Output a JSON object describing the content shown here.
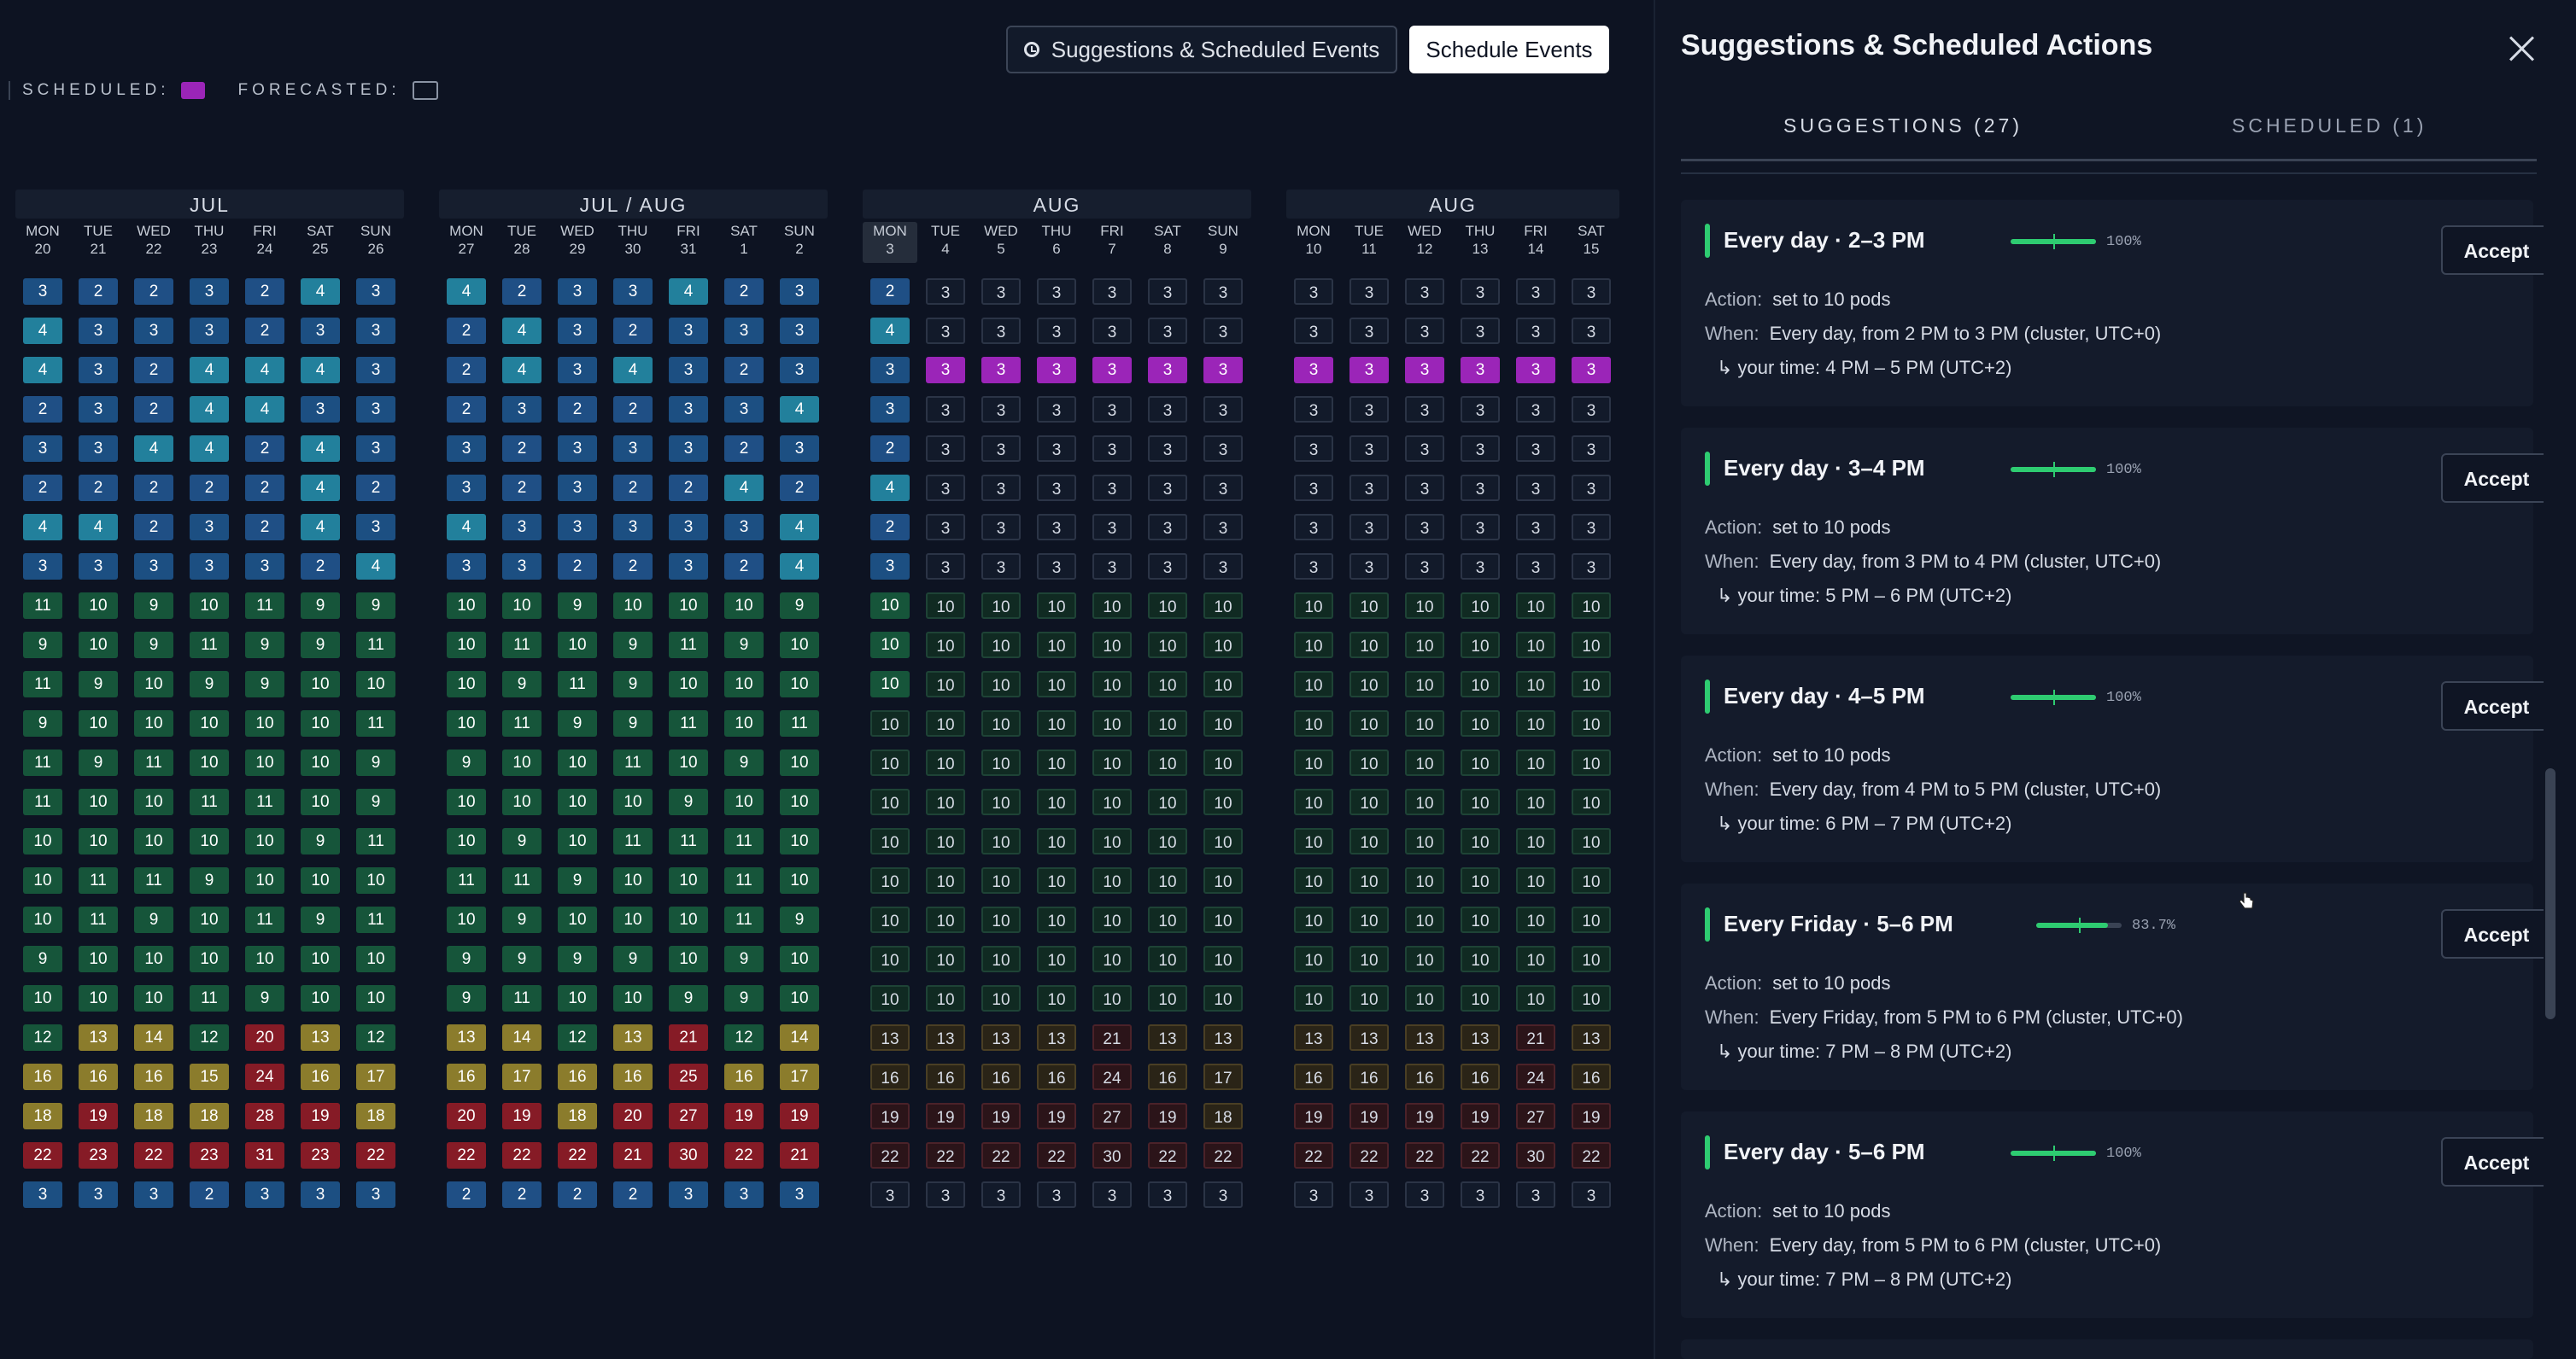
{
  "toolbar": {
    "suggestions_label": "Suggestions & Scheduled Events",
    "schedule_label": "Schedule Events"
  },
  "legend": {
    "scheduled": "SCHEDULED:",
    "forecasted": "FORECASTED:",
    "scheduled_color": "#9b25b8"
  },
  "heatmap": {
    "blocks": [
      {
        "title": "JUL",
        "days": [
          [
            "MON",
            "20"
          ],
          [
            "TUE",
            "21"
          ],
          [
            "WED",
            "22"
          ],
          [
            "THU",
            "23"
          ],
          [
            "FRI",
            "24"
          ],
          [
            "SAT",
            "25"
          ],
          [
            "SUN",
            "26"
          ]
        ],
        "today_index": -1,
        "rows": [
          [
            "3b3",
            "2b2",
            "2b2",
            "3b3",
            "2b2",
            "4b4",
            "3b3"
          ],
          [
            "4b4",
            "3b3",
            "3b3",
            "3b3",
            "2b2",
            "3b3",
            "3b3"
          ],
          [
            "4b4",
            "3b3",
            "2b2",
            "4b4",
            "4b4",
            "4b4",
            "3b3"
          ],
          [
            "2b2",
            "3b3",
            "2b2",
            "4b4",
            "4b4",
            "3b3",
            "3b3"
          ],
          [
            "3b3",
            "3b3",
            "4b4",
            "4b4",
            "2b2",
            "4b4",
            "3b3"
          ],
          [
            "2b2",
            "2b2",
            "2b2",
            "2b2",
            "2b2",
            "4b4",
            "2b2"
          ],
          [
            "4b4",
            "4b4",
            "2b2",
            "3b3",
            "2b2",
            "4b4",
            "3b3"
          ],
          [
            "3b3",
            "3b3",
            "3b3",
            "3b3",
            "3b3",
            "2b2",
            "4b4"
          ],
          [
            "11g",
            "10g",
            "9g",
            "10g",
            "11g",
            "9g",
            "9g"
          ],
          [
            "9g",
            "10g",
            "9g",
            "11g",
            "9g",
            "9g",
            "11g"
          ],
          [
            "11g",
            "9g",
            "10g",
            "9g",
            "9g",
            "10g",
            "10g"
          ],
          [
            "9g",
            "10g",
            "10g",
            "10g",
            "10g",
            "10g",
            "11g"
          ],
          [
            "11g",
            "9g",
            "11g",
            "10g",
            "10g",
            "10g",
            "9g"
          ],
          [
            "11g",
            "10g",
            "10g",
            "11g",
            "11g",
            "10g",
            "9g"
          ],
          [
            "10g",
            "10g",
            "10g",
            "10g",
            "10g",
            "9g",
            "11g"
          ],
          [
            "10g",
            "11g",
            "11g",
            "9g",
            "10g",
            "10g",
            "10g"
          ],
          [
            "10g",
            "11g",
            "9g",
            "10g",
            "11g",
            "9g",
            "11g"
          ],
          [
            "9g",
            "10g",
            "10g",
            "10g",
            "10g",
            "10g",
            "10g"
          ],
          [
            "10g",
            "10g",
            "10g",
            "11g",
            "9g",
            "10g",
            "10g"
          ],
          [
            "12g",
            "13y",
            "14y",
            "12g",
            "20r",
            "13y",
            "12g"
          ],
          [
            "16y",
            "16y",
            "16y",
            "15y",
            "24r",
            "16y",
            "17y"
          ],
          [
            "18y",
            "19r",
            "18y",
            "18y",
            "28r",
            "19r",
            "18y"
          ],
          [
            "22r",
            "23r",
            "22r",
            "23r",
            "31r",
            "23r",
            "22r"
          ],
          [
            "3b3",
            "3b3",
            "3b3",
            "2b2",
            "3b3",
            "3b3",
            "3b3"
          ]
        ]
      },
      {
        "title": "JUL / AUG",
        "days": [
          [
            "MON",
            "27"
          ],
          [
            "TUE",
            "28"
          ],
          [
            "WED",
            "29"
          ],
          [
            "THU",
            "30"
          ],
          [
            "FRI",
            "31"
          ],
          [
            "SAT",
            "1"
          ],
          [
            "SUN",
            "2"
          ]
        ],
        "today_index": -1,
        "rows": [
          [
            "4b4",
            "2b2",
            "3b3",
            "3b3",
            "4b4",
            "2b2",
            "3b3"
          ],
          [
            "2b2",
            "4b4",
            "3b3",
            "2b2",
            "3b3",
            "3b3",
            "3b3"
          ],
          [
            "2b2",
            "4b4",
            "3b3",
            "4b4",
            "3b3",
            "2b2",
            "3b3"
          ],
          [
            "2b2",
            "3b3",
            "2b2",
            "2b2",
            "3b3",
            "3b3",
            "4b4"
          ],
          [
            "3b3",
            "2b2",
            "3b3",
            "3b3",
            "3b3",
            "2b2",
            "3b3"
          ],
          [
            "3b3",
            "2b2",
            "3b3",
            "2b2",
            "2b2",
            "4b4",
            "2b2"
          ],
          [
            "4b4",
            "3b3",
            "3b3",
            "3b3",
            "3b3",
            "3b3",
            "4b4"
          ],
          [
            "3b3",
            "3b3",
            "2b2",
            "2b2",
            "3b3",
            "2b2",
            "4b4"
          ],
          [
            "10g",
            "10g",
            "9g",
            "10g",
            "10g",
            "10g",
            "9g"
          ],
          [
            "10g",
            "11g",
            "10g",
            "9g",
            "11g",
            "9g",
            "10g"
          ],
          [
            "10g",
            "9g",
            "11g",
            "9g",
            "10g",
            "10g",
            "10g"
          ],
          [
            "10g",
            "11g",
            "9g",
            "9g",
            "11g",
            "10g",
            "11g"
          ],
          [
            "9g",
            "10g",
            "10g",
            "11g",
            "10g",
            "9g",
            "10g"
          ],
          [
            "10g",
            "10g",
            "10g",
            "10g",
            "9g",
            "10g",
            "10g"
          ],
          [
            "10g",
            "9g",
            "10g",
            "11g",
            "11g",
            "11g",
            "10g"
          ],
          [
            "11g",
            "11g",
            "9g",
            "10g",
            "10g",
            "11g",
            "10g"
          ],
          [
            "10g",
            "9g",
            "10g",
            "10g",
            "10g",
            "11g",
            "9g"
          ],
          [
            "9g",
            "9g",
            "9g",
            "9g",
            "10g",
            "9g",
            "10g"
          ],
          [
            "9g",
            "11g",
            "10g",
            "10g",
            "9g",
            "9g",
            "10g"
          ],
          [
            "13y",
            "14y",
            "12g",
            "13y",
            "21r",
            "12g",
            "14y"
          ],
          [
            "16y",
            "17y",
            "16y",
            "16y",
            "25r",
            "16y",
            "17y"
          ],
          [
            "20r",
            "19r",
            "18y",
            "20r",
            "27r",
            "19r",
            "19r"
          ],
          [
            "22r",
            "22r",
            "22r",
            "21r",
            "30r",
            "22r",
            "21r"
          ],
          [
            "2b2",
            "2b2",
            "2b2",
            "2b2",
            "3b3",
            "3b3",
            "3b3"
          ]
        ]
      },
      {
        "title": "AUG",
        "days": [
          [
            "MON",
            "3"
          ],
          [
            "TUE",
            "4"
          ],
          [
            "WED",
            "5"
          ],
          [
            "THU",
            "6"
          ],
          [
            "FRI",
            "7"
          ],
          [
            "SAT",
            "8"
          ],
          [
            "SUN",
            "9"
          ]
        ],
        "today_index": 0,
        "rows": [
          [
            "2b2",
            "3f",
            "3f",
            "3f",
            "3f",
            "3f",
            "3f"
          ],
          [
            "4b4",
            "3f",
            "3f",
            "3f",
            "3f",
            "3f",
            "3f"
          ],
          [
            "3b3",
            "3p",
            "3p",
            "3p",
            "3p",
            "3p",
            "3p"
          ],
          [
            "3b3",
            "3f",
            "3f",
            "3f",
            "3f",
            "3f",
            "3f"
          ],
          [
            "2b2",
            "3f",
            "3f",
            "3f",
            "3f",
            "3f",
            "3f"
          ],
          [
            "4b4",
            "3f",
            "3f",
            "3f",
            "3f",
            "3f",
            "3f"
          ],
          [
            "2b2",
            "3f",
            "3f",
            "3f",
            "3f",
            "3f",
            "3f"
          ],
          [
            "3b3",
            "3f",
            "3f",
            "3f",
            "3f",
            "3f",
            "3f"
          ],
          [
            "10g",
            "10fg",
            "10fg",
            "10fg",
            "10fg",
            "10fg",
            "10fg"
          ],
          [
            "10g",
            "10fg",
            "10fg",
            "10fg",
            "10fg",
            "10fg",
            "10fg"
          ],
          [
            "10g",
            "10fg",
            "10fg",
            "10fg",
            "10fg",
            "10fg",
            "10fg"
          ],
          [
            "10fg",
            "10fg",
            "10fg",
            "10fg",
            "10fg",
            "10fg",
            "10fg"
          ],
          [
            "10fg",
            "10fg",
            "10fg",
            "10fg",
            "10fg",
            "10fg",
            "10fg"
          ],
          [
            "10fg",
            "10fg",
            "10fg",
            "10fg",
            "10fg",
            "10fg",
            "10fg"
          ],
          [
            "10fg",
            "10fg",
            "10fg",
            "10fg",
            "10fg",
            "10fg",
            "10fg"
          ],
          [
            "10fg",
            "10fg",
            "10fg",
            "10fg",
            "10fg",
            "10fg",
            "10fg"
          ],
          [
            "10fg",
            "10fg",
            "10fg",
            "10fg",
            "10fg",
            "10fg",
            "10fg"
          ],
          [
            "10fg",
            "10fg",
            "10fg",
            "10fg",
            "10fg",
            "10fg",
            "10fg"
          ],
          [
            "10fg",
            "10fg",
            "10fg",
            "10fg",
            "10fg",
            "10fg",
            "10fg"
          ],
          [
            "13fy",
            "13fy",
            "13fy",
            "13fy",
            "21fr",
            "13fy",
            "13fy"
          ],
          [
            "16fy",
            "16fy",
            "16fy",
            "16fy",
            "24fr",
            "16fy",
            "17fy"
          ],
          [
            "19fr",
            "19fr",
            "19fr",
            "19fr",
            "27fr",
            "19fr",
            "18fy"
          ],
          [
            "22fr",
            "22fr",
            "22fr",
            "22fr",
            "30fr",
            "22fr",
            "22fr"
          ],
          [
            "3f",
            "3f",
            "3f",
            "3f",
            "3f",
            "3f",
            "3f"
          ]
        ]
      },
      {
        "title": "AUG",
        "days": [
          [
            "MON",
            "10"
          ],
          [
            "TUE",
            "11"
          ],
          [
            "WED",
            "12"
          ],
          [
            "THU",
            "13"
          ],
          [
            "FRI",
            "14"
          ],
          [
            "SAT",
            "15"
          ]
        ],
        "today_index": -1,
        "rows": [
          [
            "3f",
            "3f",
            "3f",
            "3f",
            "3f",
            "3f"
          ],
          [
            "3f",
            "3f",
            "3f",
            "3f",
            "3f",
            "3f"
          ],
          [
            "3p",
            "3p",
            "3p",
            "3p",
            "3p",
            "3p"
          ],
          [
            "3f",
            "3f",
            "3f",
            "3f",
            "3f",
            "3f"
          ],
          [
            "3f",
            "3f",
            "3f",
            "3f",
            "3f",
            "3f"
          ],
          [
            "3f",
            "3f",
            "3f",
            "3f",
            "3f",
            "3f"
          ],
          [
            "3f",
            "3f",
            "3f",
            "3f",
            "3f",
            "3f"
          ],
          [
            "3f",
            "3f",
            "3f",
            "3f",
            "3f",
            "3f"
          ],
          [
            "10fg",
            "10fg",
            "10fg",
            "10fg",
            "10fg",
            "10fg"
          ],
          [
            "10fg",
            "10fg",
            "10fg",
            "10fg",
            "10fg",
            "10fg"
          ],
          [
            "10fg",
            "10fg",
            "10fg",
            "10fg",
            "10fg",
            "10fg"
          ],
          [
            "10fg",
            "10fg",
            "10fg",
            "10fg",
            "10fg",
            "10fg"
          ],
          [
            "10fg",
            "10fg",
            "10fg",
            "10fg",
            "10fg",
            "10fg"
          ],
          [
            "10fg",
            "10fg",
            "10fg",
            "10fg",
            "10fg",
            "10fg"
          ],
          [
            "10fg",
            "10fg",
            "10fg",
            "10fg",
            "10fg",
            "10fg"
          ],
          [
            "10fg",
            "10fg",
            "10fg",
            "10fg",
            "10fg",
            "10fg"
          ],
          [
            "10fg",
            "10fg",
            "10fg",
            "10fg",
            "10fg",
            "10fg"
          ],
          [
            "10fg",
            "10fg",
            "10fg",
            "10fg",
            "10fg",
            "10fg"
          ],
          [
            "10fg",
            "10fg",
            "10fg",
            "10fg",
            "10fg",
            "10fg"
          ],
          [
            "13fy",
            "13fy",
            "13fy",
            "13fy",
            "21fr",
            "13fy"
          ],
          [
            "16fy",
            "16fy",
            "16fy",
            "16fy",
            "24fr",
            "16fy"
          ],
          [
            "19fr",
            "19fr",
            "19fr",
            "19fr",
            "27fr",
            "19fr"
          ],
          [
            "22fr",
            "22fr",
            "22fr",
            "22fr",
            "30fr",
            "22fr"
          ],
          [
            "3f",
            "3f",
            "3f",
            "3f",
            "3f",
            "3f"
          ]
        ]
      }
    ]
  },
  "panel": {
    "title": "Suggestions & Scheduled Actions",
    "tabs": [
      {
        "label": "SUGGESTIONS (27)",
        "active": true
      },
      {
        "label": "SCHEDULED (1)",
        "active": false
      }
    ],
    "cards": [
      {
        "title": "Every day · 2–3 PM",
        "confidence": 1.0,
        "confidence_label": "100%",
        "action_label": "Action:",
        "action": "set to 10 pods",
        "when_label": "When:",
        "when": "Every day, from 2 PM to 3 PM (cluster, UTC+0)",
        "local": "↳ your time: 4 PM – 5 PM (UTC+2)",
        "accept_label": "Accept"
      },
      {
        "title": "Every day · 3–4 PM",
        "confidence": 1.0,
        "confidence_label": "100%",
        "action_label": "Action:",
        "action": "set to 10 pods",
        "when_label": "When:",
        "when": "Every day, from 3 PM to 4 PM (cluster, UTC+0)",
        "local": "↳ your time: 5 PM – 6 PM (UTC+2)",
        "accept_label": "Accept"
      },
      {
        "title": "Every day · 4–5 PM",
        "confidence": 1.0,
        "confidence_label": "100%",
        "action_label": "Action:",
        "action": "set to 10 pods",
        "when_label": "When:",
        "when": "Every day, from 4 PM to 5 PM (cluster, UTC+0)",
        "local": "↳ your time: 6 PM – 7 PM (UTC+2)",
        "accept_label": "Accept"
      },
      {
        "title": "Every Friday · 5–6 PM",
        "confidence": 0.837,
        "confidence_label": "83.7%",
        "action_label": "Action:",
        "action": "set to 10 pods",
        "when_label": "When:",
        "when": "Every Friday, from 5 PM to 6 PM (cluster, UTC+0)",
        "local": "↳ your time: 7 PM – 8 PM (UTC+2)",
        "accept_label": "Accept"
      },
      {
        "title": "Every day · 5–6 PM",
        "confidence": 1.0,
        "confidence_label": "100%",
        "action_label": "Action:",
        "action": "set to 10 pods",
        "when_label": "When:",
        "when": "Every day, from 5 PM to 6 PM (cluster, UTC+0)",
        "local": "↳ your time: 7 PM – 8 PM (UTC+2)",
        "accept_label": "Accept"
      }
    ]
  }
}
